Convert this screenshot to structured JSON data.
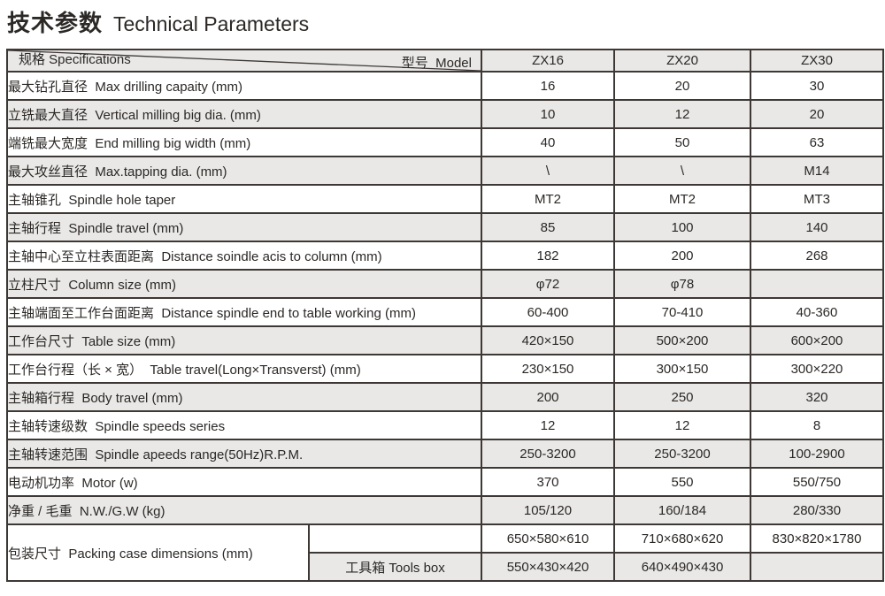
{
  "title": {
    "zh": "技术参数",
    "en": "Technical Parameters"
  },
  "table": {
    "header": {
      "spec_label": "规格 Specifications",
      "model_label": "型号  Model",
      "models": [
        "ZX16",
        "ZX20",
        "ZX30"
      ]
    },
    "rows": [
      {
        "label": "最大钻孔直径  Max drilling capaity (mm)",
        "values": [
          "16",
          "20",
          "30"
        ]
      },
      {
        "label": "立铣最大直径  Vertical milling big dia. (mm)",
        "values": [
          "10",
          "12",
          "20"
        ]
      },
      {
        "label": "端铣最大宽度  End milling big width (mm)",
        "values": [
          "40",
          "50",
          "63"
        ]
      },
      {
        "label": "最大攻丝直径  Max.tapping dia. (mm)",
        "values": [
          "\\",
          "\\",
          "M14"
        ]
      },
      {
        "label": "主轴锥孔  Spindle hole taper",
        "values": [
          "MT2",
          "MT2",
          "MT3"
        ]
      },
      {
        "label": "主轴行程  Spindle travel (mm)",
        "values": [
          "85",
          "100",
          "140"
        ]
      },
      {
        "label": "主轴中心至立柱表面距离  Distance soindle acis to column (mm)",
        "values": [
          "182",
          "200",
          "268"
        ]
      },
      {
        "label": "立柱尺寸  Column size (mm)",
        "values": [
          "φ72",
          "φ78",
          ""
        ]
      },
      {
        "label": "主轴端面至工作台面距离  Distance spindle end to table working (mm)",
        "values": [
          "60-400",
          "70-410",
          "40-360"
        ]
      },
      {
        "label": "工作台尺寸  Table size (mm)",
        "values": [
          "420×150",
          "500×200",
          "600×200"
        ]
      },
      {
        "label": "工作台行程（长 × 宽）  Table travel(Long×Transverst) (mm)",
        "values": [
          "230×150",
          "300×150",
          "300×220"
        ]
      },
      {
        "label": "主轴箱行程  Body travel (mm)",
        "values": [
          "200",
          "250",
          "320"
        ]
      },
      {
        "label": "主轴转速级数  Spindle speeds series",
        "values": [
          "12",
          "12",
          "8"
        ]
      },
      {
        "label": "主轴转速范围  Spindle apeeds range(50Hz)R.P.M.",
        "values": [
          "250-3200",
          "250-3200",
          "100-2900"
        ]
      },
      {
        "label": "电动机功率  Motor (w)",
        "values": [
          "370",
          "550",
          "550/750"
        ]
      },
      {
        "label": "净重 / 毛重  N.W./G.W (kg)",
        "values": [
          "105/120",
          "160/184",
          "280/330"
        ]
      }
    ],
    "packing": {
      "label": "包装尺寸  Packing case dimensions (mm)",
      "tools_label": "工具箱 Tools box",
      "case_values": [
        "650×580×610",
        "710×680×620",
        "830×820×1780"
      ],
      "tools_values": [
        "550×430×420",
        "640×490×430",
        ""
      ]
    }
  },
  "colors": {
    "row_shaded": "#e9e8e6",
    "border": "#3d3835",
    "text": "#2b2826",
    "background": "#ffffff"
  }
}
